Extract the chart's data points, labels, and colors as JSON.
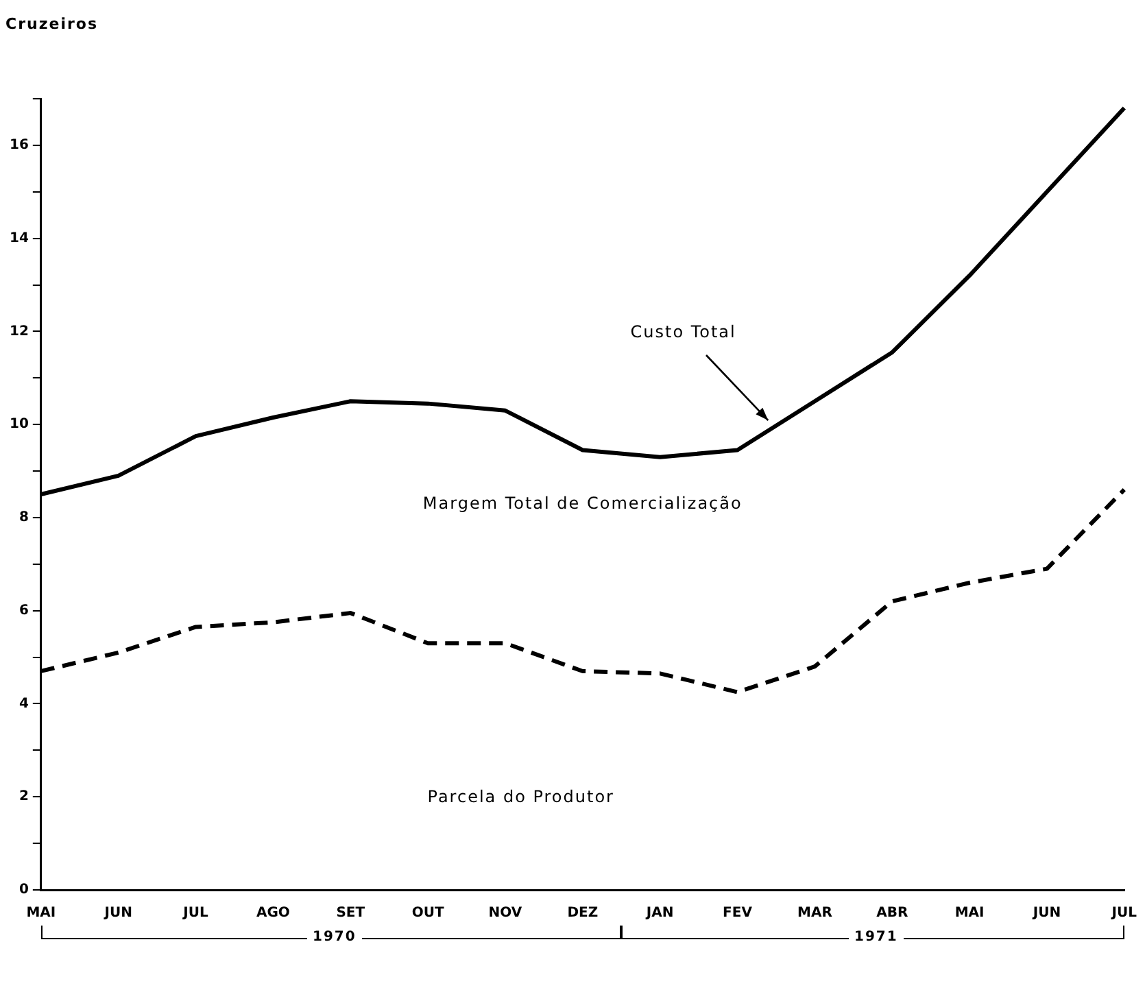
{
  "chart_data": {
    "type": "line",
    "ylabel": "Cruzeiros",
    "categories": [
      "MAI",
      "JUN",
      "JUL",
      "AGO",
      "SET",
      "OUT",
      "NOV",
      "DEZ",
      "JAN",
      "FEV",
      "MAR",
      "ABR",
      "MAI",
      "JUN",
      "JUL"
    ],
    "series": [
      {
        "color": "#000000",
        "line_style": "solid",
        "values": [
          8.5,
          8.9,
          9.75,
          10.15,
          10.5,
          10.45,
          10.3,
          9.45,
          9.3,
          9.45,
          10.5,
          11.55,
          13.2,
          15.0,
          16.8
        ]
      },
      {
        "color": "#000000",
        "line_style": "dashed",
        "values": [
          4.7,
          5.1,
          5.65,
          5.75,
          5.95,
          5.3,
          5.3,
          4.7,
          4.65,
          4.25,
          4.8,
          6.2,
          6.6,
          6.9,
          8.6
        ]
      }
    ],
    "ylim": [
      0,
      17
    ],
    "yticks": [
      0,
      {
        "value": 1,
        "label": null
      },
      2,
      {
        "value": 3,
        "label": null
      },
      4,
      {
        "value": 5,
        "label": null
      },
      6,
      {
        "value": 7,
        "label": null
      },
      8,
      {
        "value": 9,
        "label": null
      },
      10,
      {
        "value": 11,
        "label": null
      },
      12,
      {
        "value": 13,
        "label": null
      },
      14,
      {
        "value": 15,
        "label": null
      },
      16,
      {
        "value": 17,
        "label": null
      }
    ],
    "grid": false,
    "legend": false,
    "marker": "none",
    "annotations": [
      "Custo Total",
      "Margem Total de Comercialização",
      "Parcela do Produtor",
      "1970",
      "1971"
    ]
  }
}
